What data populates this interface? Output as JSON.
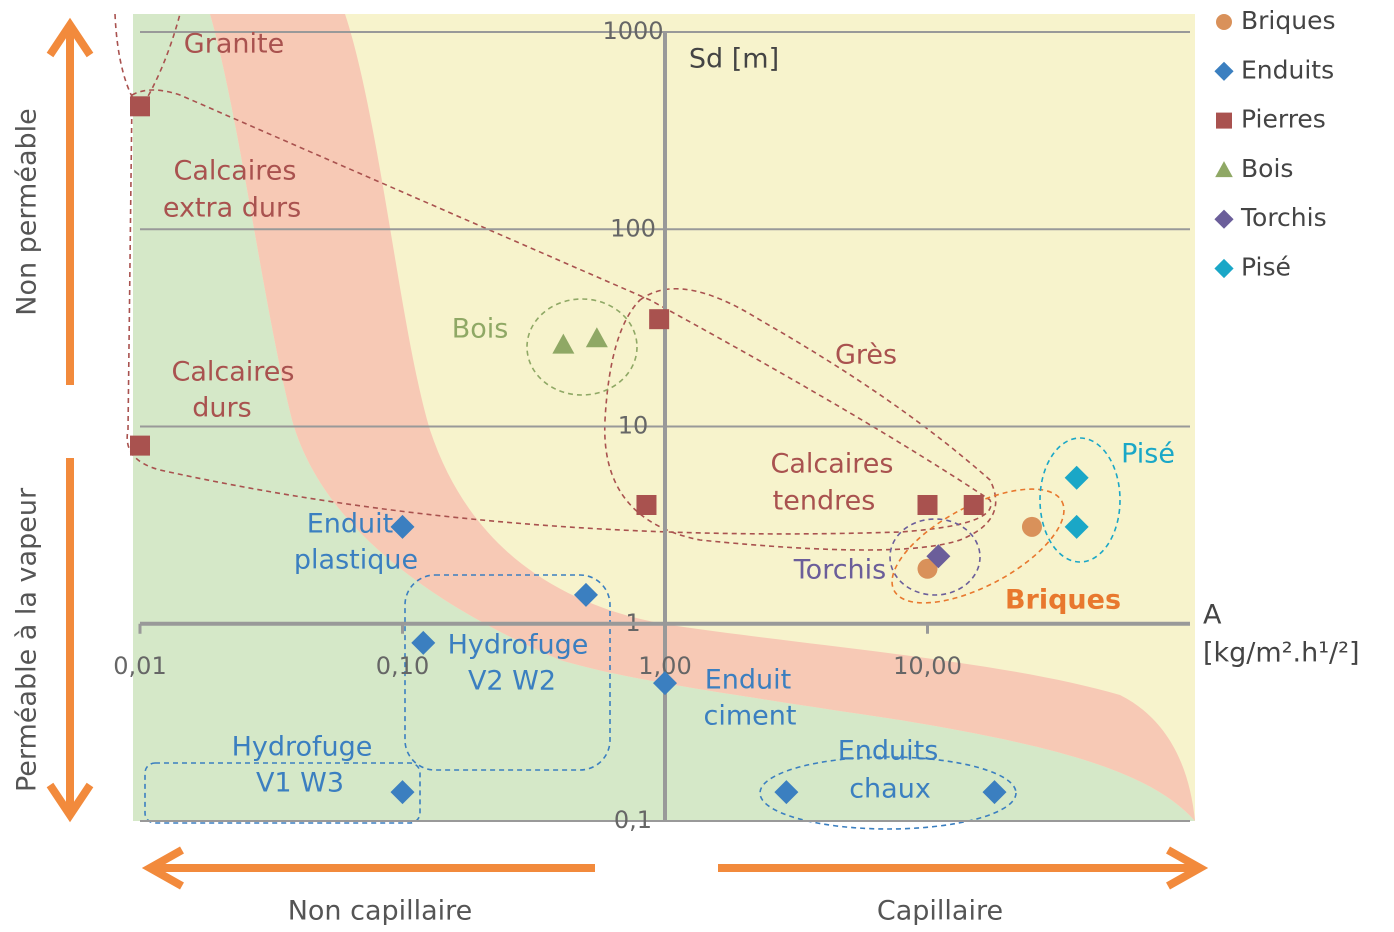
{
  "chart_data": {
    "type": "scatter",
    "y_axis_label": "Sd [m]",
    "x_axis_label": [
      "A",
      "[kg/m².h¹/²]"
    ],
    "left_labels": [
      "Non perméable",
      "Perméable à la vapeur"
    ],
    "bottom_labels": [
      "Non capillaire",
      "Capillaire"
    ],
    "log_x": true,
    "log_y": true,
    "xlim": [
      0.01,
      100
    ],
    "ylim": [
      0.1,
      1000
    ],
    "xticks": [
      {
        "value": 0.01,
        "label": "0,01"
      },
      {
        "value": 0.1,
        "label": "0,10"
      },
      {
        "value": 1,
        "label": "1,00"
      },
      {
        "value": 10,
        "label": "10,00"
      }
    ],
    "yticks": [
      {
        "value": 0.1,
        "label": "0,1"
      },
      1,
      10,
      100,
      1000
    ],
    "grid": true,
    "legend": "right",
    "series": [
      {
        "name": "Briques",
        "color": "#d9915a",
        "marker": "circle",
        "x": [
          10,
          25
        ],
        "values": [
          1.9,
          3.1
        ]
      },
      {
        "name": "Enduits",
        "color": "#3b7fc0",
        "marker": "diamond",
        "x": [
          0.1,
          0.5,
          0.12,
          1,
          0.1,
          2.9,
          18
        ],
        "values": [
          3.1,
          1.4,
          0.8,
          0.5,
          0.14,
          0.14,
          0.14
        ]
      },
      {
        "name": "Pierres",
        "color": "#a9524f",
        "marker": "square",
        "x": [
          0.01,
          0.01,
          0.95,
          0.85,
          10,
          15
        ],
        "values": [
          420,
          8,
          35,
          4,
          4,
          4
        ]
      },
      {
        "name": "Bois",
        "color": "#8fa865",
        "marker": "triangle",
        "x": [
          0.41,
          0.55
        ],
        "values": [
          26,
          28
        ]
      },
      {
        "name": "Torchis",
        "color": "#6b5e9a",
        "marker": "diamond",
        "x": [
          11
        ],
        "values": [
          2.2
        ]
      },
      {
        "name": "Pisé",
        "color": "#1aa7c7",
        "marker": "diamond",
        "x": [
          37,
          37
        ],
        "values": [
          5.5,
          3.1
        ]
      }
    ],
    "annotations": [
      [
        "Granite"
      ],
      [
        "Calcaires",
        "extra durs"
      ],
      [
        "Calcaires",
        "durs"
      ],
      [
        "Bois"
      ],
      [
        "Grès"
      ],
      [
        "Calcaires",
        "tendres"
      ],
      [
        "Pisé"
      ],
      [
        "Torchis"
      ],
      [
        "Briques"
      ],
      [
        "Enduit",
        "plastique"
      ],
      [
        "Hydrofuge",
        "V2 W2"
      ],
      [
        "Enduit",
        "ciment"
      ],
      [
        "Hydrofuge",
        "V1 W3"
      ],
      [
        "Enduits",
        "chaux"
      ]
    ]
  }
}
